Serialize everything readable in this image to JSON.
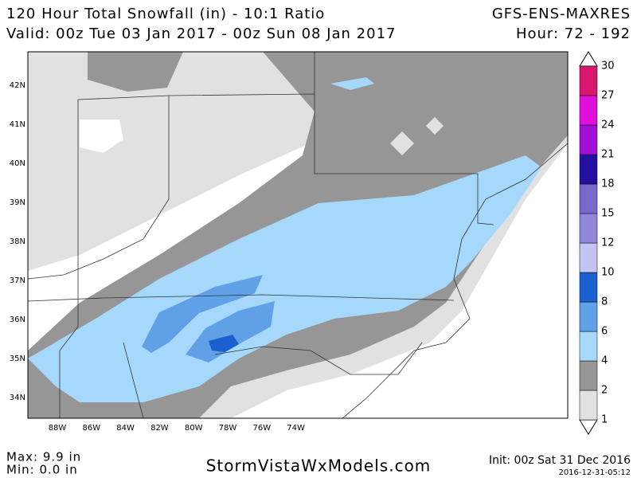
{
  "header": {
    "title": "120 Hour Total Snowfall (in) - 10:1 Ratio",
    "valid": "Valid: 00z Tue 03 Jan 2017 - 00z Sun 08 Jan 2017",
    "model": "GFS-ENS-MAXRES",
    "hours": "Hour: 72 - 192"
  },
  "map": {
    "lat_labels": [
      "42N",
      "41N",
      "40N",
      "39N",
      "38N",
      "37N",
      "36N",
      "35N",
      "34N"
    ],
    "lon_labels": [
      "88W",
      "86W",
      "84W",
      "82W",
      "80W",
      "78W",
      "76W",
      "74W"
    ]
  },
  "legend": {
    "levels": [
      1,
      2,
      4,
      6,
      8,
      10,
      12,
      15,
      18,
      21,
      24,
      27,
      30
    ],
    "colors": [
      "#e1e1e1",
      "#969696",
      "#a6d8fc",
      "#5fa0e6",
      "#1a60d0",
      "#c4c4f4",
      "#9088dc",
      "#7868cc",
      "#2410a0",
      "#a010d6",
      "#e010d8",
      "#d81870"
    ]
  },
  "footer": {
    "max": "Max: 9.9 in",
    "min": "Min: 0.0 in",
    "site": "StormVistaWxModels.com",
    "init": "Init: 00z Sat 31 Dec 2016",
    "timestamp": "2016-12-31-05:12"
  }
}
